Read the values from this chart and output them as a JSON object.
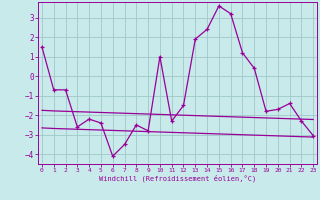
{
  "xlabel": "Windchill (Refroidissement éolien,°C)",
  "background_color": "#c8eaea",
  "grid_color": "#a0c8c8",
  "line_color": "#990099",
  "x_hours": [
    0,
    1,
    2,
    3,
    4,
    5,
    6,
    7,
    8,
    9,
    10,
    11,
    12,
    13,
    14,
    15,
    16,
    17,
    18,
    19,
    20,
    21,
    22,
    23
  ],
  "line1_y": [
    1.5,
    -0.7,
    -0.7,
    -2.6,
    -2.2,
    -2.4,
    -4.1,
    -3.5,
    -2.5,
    -2.8,
    1.0,
    -2.3,
    -1.5,
    1.9,
    2.4,
    3.6,
    3.2,
    1.2,
    0.4,
    -1.8,
    -1.7,
    -1.4,
    -2.3,
    -3.05
  ],
  "line2_y": [
    -1.75,
    -1.78,
    -1.8,
    -1.82,
    -1.84,
    -1.86,
    -1.88,
    -1.9,
    -1.92,
    -1.94,
    -1.96,
    -1.98,
    -2.0,
    -2.02,
    -2.04,
    -2.06,
    -2.08,
    -2.1,
    -2.12,
    -2.14,
    -2.16,
    -2.18,
    -2.2,
    -2.22
  ],
  "line3_y": [
    -2.65,
    -2.68,
    -2.7,
    -2.72,
    -2.74,
    -2.76,
    -2.78,
    -2.8,
    -2.82,
    -2.84,
    -2.86,
    -2.88,
    -2.9,
    -2.92,
    -2.94,
    -2.96,
    -2.98,
    -3.0,
    -3.02,
    -3.04,
    -3.06,
    -3.08,
    -3.1,
    -3.12
  ],
  "ylim": [
    -4.5,
    3.8
  ],
  "yticks": [
    -4,
    -3,
    -2,
    -1,
    0,
    1,
    2,
    3
  ],
  "xticks": [
    0,
    1,
    2,
    3,
    4,
    5,
    6,
    7,
    8,
    9,
    10,
    11,
    12,
    13,
    14,
    15,
    16,
    17,
    18,
    19,
    20,
    21,
    22,
    23
  ]
}
